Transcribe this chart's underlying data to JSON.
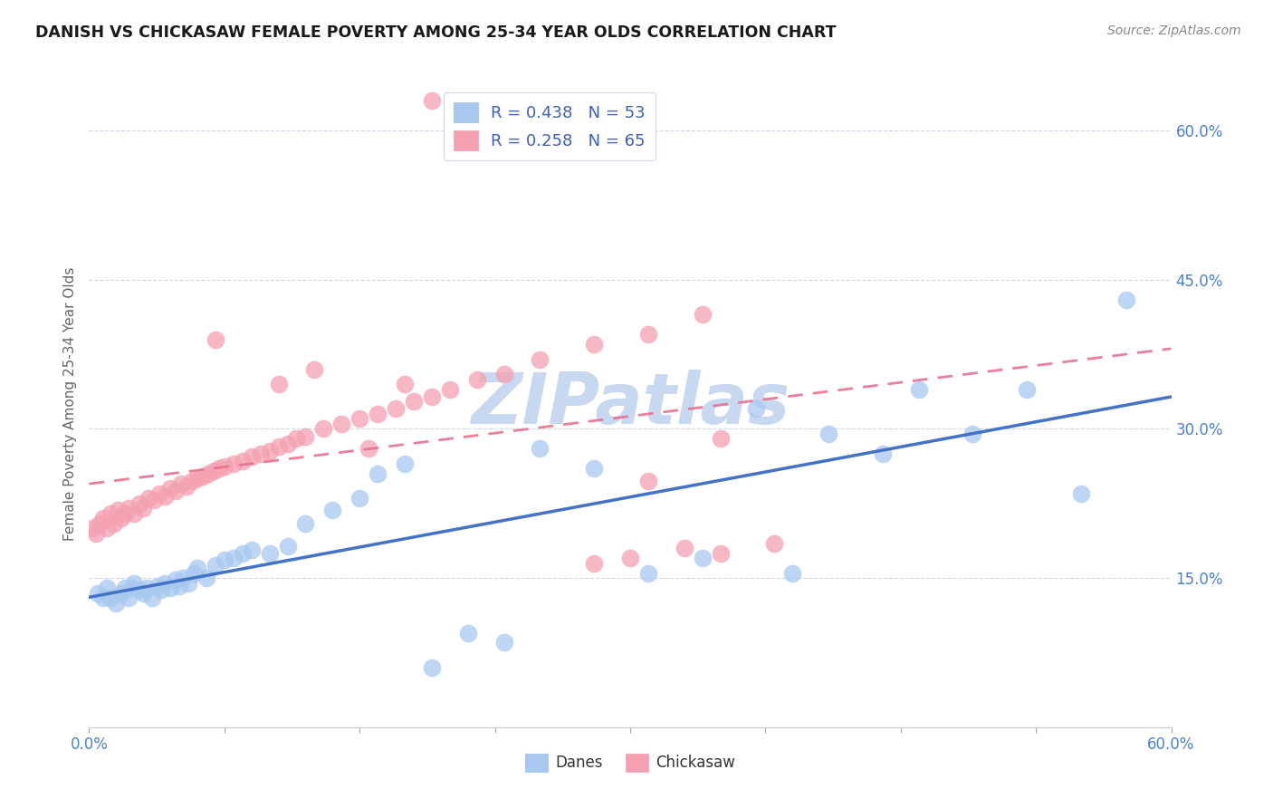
{
  "title": "DANISH VS CHICKASAW FEMALE POVERTY AMONG 25-34 YEAR OLDS CORRELATION CHART",
  "source": "Source: ZipAtlas.com",
  "ylabel": "Female Poverty Among 25-34 Year Olds",
  "xlim": [
    0.0,
    0.6
  ],
  "ylim": [
    0.0,
    0.65
  ],
  "x_ticks": [
    0.0,
    0.075,
    0.15,
    0.225,
    0.3,
    0.375,
    0.45,
    0.525,
    0.6
  ],
  "y_ticks": [
    0.15,
    0.3,
    0.45,
    0.6
  ],
  "y_tick_labels": [
    "15.0%",
    "30.0%",
    "45.0%",
    "60.0%"
  ],
  "danes_R": 0.438,
  "danes_N": 53,
  "chickasaw_R": 0.258,
  "chickasaw_N": 65,
  "danes_color": "#A8C8F0",
  "chickasaw_color": "#F4A0B0",
  "danes_line_color": "#4472C4",
  "chickasaw_line_color": "#E87090",
  "watermark_color": "#C8D8F0",
  "danes_x": [
    0.005,
    0.008,
    0.01,
    0.012,
    0.015,
    0.018,
    0.02,
    0.022,
    0.024,
    0.025,
    0.028,
    0.03,
    0.032,
    0.035,
    0.038,
    0.04,
    0.042,
    0.045,
    0.048,
    0.05,
    0.052,
    0.055,
    0.058,
    0.06,
    0.065,
    0.07,
    0.075,
    0.08,
    0.085,
    0.09,
    0.1,
    0.11,
    0.12,
    0.135,
    0.15,
    0.16,
    0.175,
    0.19,
    0.21,
    0.23,
    0.25,
    0.28,
    0.31,
    0.34,
    0.37,
    0.39,
    0.41,
    0.44,
    0.46,
    0.49,
    0.52,
    0.55,
    0.575
  ],
  "danes_y": [
    0.135,
    0.13,
    0.14,
    0.13,
    0.125,
    0.135,
    0.14,
    0.13,
    0.14,
    0.145,
    0.138,
    0.135,
    0.14,
    0.13,
    0.142,
    0.138,
    0.145,
    0.14,
    0.148,
    0.142,
    0.15,
    0.145,
    0.155,
    0.16,
    0.15,
    0.163,
    0.168,
    0.17,
    0.175,
    0.178,
    0.175,
    0.182,
    0.205,
    0.218,
    0.23,
    0.255,
    0.265,
    0.06,
    0.095,
    0.085,
    0.28,
    0.26,
    0.155,
    0.17,
    0.32,
    0.155,
    0.295,
    0.275,
    0.34,
    0.295,
    0.34,
    0.235,
    0.43
  ],
  "chickasaw_x": [
    0.002,
    0.004,
    0.006,
    0.008,
    0.01,
    0.012,
    0.014,
    0.016,
    0.018,
    0.02,
    0.022,
    0.025,
    0.028,
    0.03,
    0.033,
    0.036,
    0.039,
    0.042,
    0.045,
    0.048,
    0.051,
    0.054,
    0.057,
    0.06,
    0.063,
    0.066,
    0.069,
    0.072,
    0.075,
    0.08,
    0.085,
    0.09,
    0.095,
    0.1,
    0.105,
    0.11,
    0.115,
    0.12,
    0.13,
    0.14,
    0.15,
    0.16,
    0.17,
    0.18,
    0.19,
    0.2,
    0.215,
    0.23,
    0.25,
    0.28,
    0.31,
    0.34,
    0.07,
    0.105,
    0.125,
    0.155,
    0.175,
    0.31,
    0.35,
    0.19,
    0.28,
    0.3,
    0.33,
    0.35,
    0.38
  ],
  "chickasaw_y": [
    0.2,
    0.195,
    0.205,
    0.21,
    0.2,
    0.215,
    0.205,
    0.218,
    0.21,
    0.215,
    0.22,
    0.215,
    0.225,
    0.22,
    0.23,
    0.228,
    0.235,
    0.232,
    0.24,
    0.238,
    0.245,
    0.242,
    0.248,
    0.25,
    0.252,
    0.255,
    0.258,
    0.26,
    0.262,
    0.265,
    0.268,
    0.272,
    0.275,
    0.278,
    0.282,
    0.285,
    0.29,
    0.292,
    0.3,
    0.305,
    0.31,
    0.315,
    0.32,
    0.328,
    0.332,
    0.34,
    0.35,
    0.355,
    0.37,
    0.385,
    0.395,
    0.415,
    0.39,
    0.345,
    0.36,
    0.28,
    0.345,
    0.248,
    0.29,
    0.63,
    0.165,
    0.17,
    0.18,
    0.175,
    0.185
  ]
}
